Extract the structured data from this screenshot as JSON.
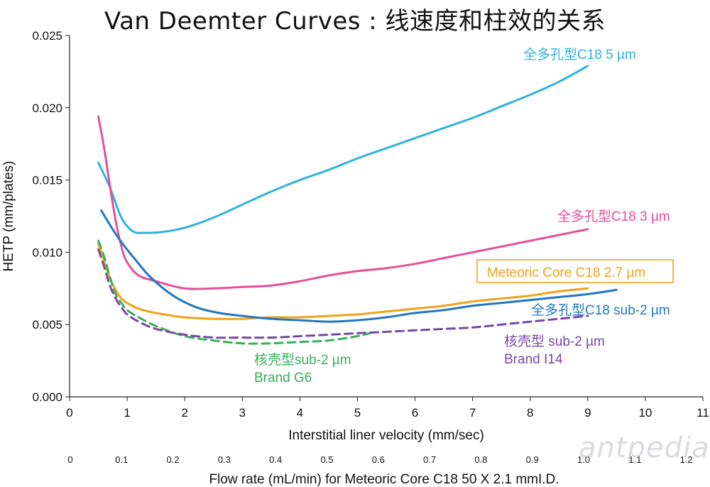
{
  "chart_data": {
    "type": "line",
    "title": "Van Deemter Curves : 线速度和柱效的关系",
    "xlabel": "Interstitial liner velocity (mm/sec)",
    "ylabel": "HETP (mm/plates)",
    "xlim": [
      0,
      11
    ],
    "ylim": [
      0,
      0.025
    ],
    "x_ticks": [
      0,
      1,
      2,
      3,
      4,
      5,
      6,
      7,
      8,
      9,
      10,
      11
    ],
    "y_ticks": [
      "0.000",
      "0.005",
      "0.010",
      "0.015",
      "0.020",
      "0.025"
    ],
    "secondary_axis": {
      "label": "Flow rate (mL/min) for Meteoric Core C18  50 X 2.1 mmI.D.",
      "ticks": [
        "0",
        "0.1",
        "0.2",
        "0.3",
        "0.4",
        "0.5",
        "0.6",
        "0.7",
        "0.8",
        "0.9",
        "1.0",
        "1.1",
        "1.2"
      ]
    },
    "series": [
      {
        "name": "全多孔型C18 5 µm",
        "color": "#2eb3df",
        "dashed": false,
        "label_box": false,
        "x": [
          0.5,
          0.7,
          0.9,
          1.1,
          1.3,
          1.6,
          2.0,
          2.5,
          3.0,
          3.5,
          4.0,
          4.5,
          5.0,
          5.5,
          6.0,
          6.5,
          7.0,
          7.5,
          8.0,
          8.5,
          9.0
        ],
        "values": [
          0.0162,
          0.0145,
          0.0124,
          0.01145,
          0.01135,
          0.0114,
          0.0117,
          0.0124,
          0.0133,
          0.0142,
          0.015,
          0.0157,
          0.0165,
          0.0172,
          0.0179,
          0.0186,
          0.0193,
          0.0201,
          0.0209,
          0.0218,
          0.0229
        ]
      },
      {
        "name": "全多孔型C18 3 µm",
        "color": "#e54f98",
        "dashed": false,
        "label_box": false,
        "x": [
          0.5,
          0.6,
          0.7,
          0.8,
          0.9,
          1.0,
          1.2,
          1.5,
          2.0,
          2.5,
          3.0,
          3.5,
          4.0,
          4.5,
          5.0,
          5.5,
          6.0,
          6.5,
          7.0,
          7.5,
          8.0,
          8.5,
          9.0
        ],
        "values": [
          0.0194,
          0.0172,
          0.0146,
          0.0122,
          0.0104,
          0.0093,
          0.0084,
          0.008,
          0.0075,
          0.0075,
          0.0076,
          0.0077,
          0.008,
          0.0084,
          0.0087,
          0.0089,
          0.0092,
          0.0096,
          0.01,
          0.0104,
          0.0108,
          0.0112,
          0.0116
        ]
      },
      {
        "name": "Meteoric Core C18 2.7 µm",
        "color": "#f0a318",
        "dashed": false,
        "label_box": true,
        "x": [
          0.5,
          0.6,
          0.7,
          0.8,
          0.9,
          1.0,
          1.2,
          1.5,
          2.0,
          2.5,
          3.0,
          3.5,
          4.0,
          4.5,
          5.0,
          5.5,
          6.0,
          6.5,
          7.0,
          7.5,
          8.0,
          8.5,
          9.0
        ],
        "values": [
          0.0106,
          0.0094,
          0.0082,
          0.0074,
          0.0068,
          0.0065,
          0.0061,
          0.0058,
          0.0055,
          0.0054,
          0.0054,
          0.0055,
          0.0055,
          0.0056,
          0.0057,
          0.0059,
          0.0061,
          0.0063,
          0.0066,
          0.0068,
          0.007,
          0.0073,
          0.0075
        ]
      },
      {
        "name": "全多孔型C18 sub-2 µm",
        "color": "#1f78c1",
        "dashed": false,
        "label_box": false,
        "x": [
          0.55,
          0.7,
          0.9,
          1.1,
          1.4,
          1.8,
          2.2,
          2.6,
          3.0,
          3.5,
          4.0,
          4.5,
          5.0,
          5.5,
          6.0,
          6.5,
          7.0,
          7.5,
          8.0,
          8.5,
          9.0,
          9.5
        ],
        "values": [
          0.0129,
          0.0119,
          0.0107,
          0.0097,
          0.0083,
          0.007,
          0.0062,
          0.0058,
          0.0056,
          0.0054,
          0.0053,
          0.0052,
          0.0053,
          0.0055,
          0.0058,
          0.006,
          0.0063,
          0.0065,
          0.0067,
          0.0069,
          0.0071,
          0.0074
        ]
      },
      {
        "name": "核壳型sub-2 µm",
        "name_line2": "Brand G6",
        "color": "#35b05a",
        "dashed": true,
        "label_box": false,
        "x": [
          0.5,
          0.6,
          0.7,
          0.8,
          0.9,
          1.0,
          1.2,
          1.5,
          2.0,
          2.5,
          3.0,
          3.5,
          4.0,
          4.5,
          5.0,
          5.3
        ],
        "values": [
          0.0108,
          0.0097,
          0.0083,
          0.0071,
          0.0065,
          0.006,
          0.0055,
          0.0049,
          0.0042,
          0.0039,
          0.0037,
          0.0037,
          0.0038,
          0.0039,
          0.0042,
          0.0045
        ]
      },
      {
        "name": "核壳型 sub-2 µm",
        "name_line2": "Brand I14",
        "color": "#7a46a6",
        "dashed": true,
        "label_box": false,
        "x": [
          0.5,
          0.6,
          0.7,
          0.8,
          0.9,
          1.0,
          1.2,
          1.5,
          2.0,
          2.5,
          3.0,
          3.5,
          4.0,
          4.5,
          5.0,
          5.5,
          6.0,
          6.5,
          7.0,
          7.5,
          8.0,
          8.5,
          9.0
        ],
        "values": [
          0.0102,
          0.009,
          0.0077,
          0.0068,
          0.0062,
          0.0057,
          0.0052,
          0.0047,
          0.0043,
          0.0041,
          0.0041,
          0.0041,
          0.0042,
          0.0043,
          0.0044,
          0.0045,
          0.0046,
          0.0047,
          0.0048,
          0.005,
          0.0052,
          0.0054,
          0.0056
        ]
      }
    ]
  },
  "watermark": "antpedia"
}
